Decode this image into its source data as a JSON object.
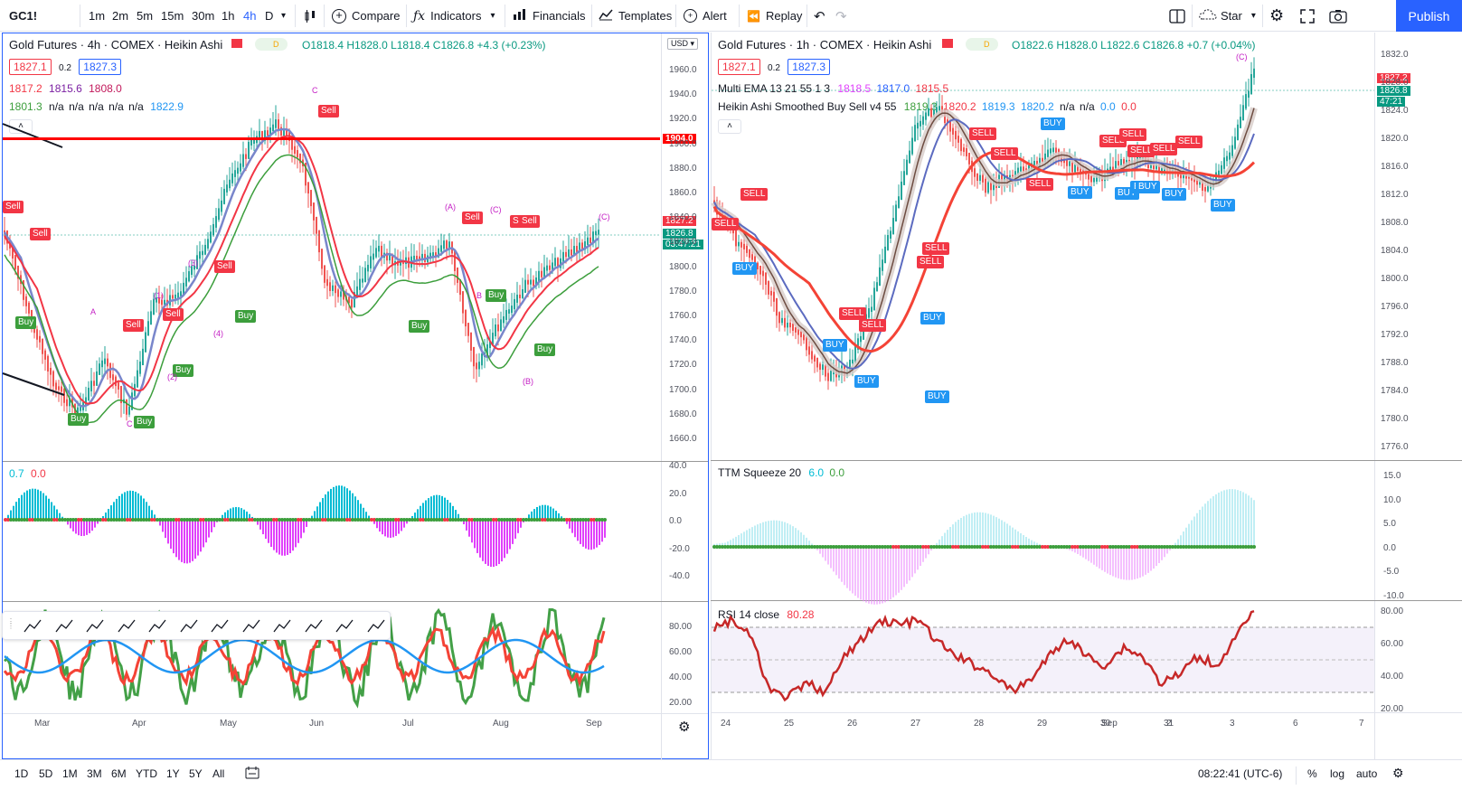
{
  "toolbar": {
    "symbol": "GC1!",
    "intervals": [
      "1m",
      "2m",
      "5m",
      "15m",
      "30m",
      "1h",
      "4h",
      "D"
    ],
    "compare": "Compare",
    "indicators": "Indicators",
    "financials": "Financials",
    "templates": "Templates",
    "alert": "Alert",
    "replay": "Replay",
    "star": "Star",
    "publish": "Publish"
  },
  "left_chart": {
    "title": "Gold Futures · 4h · COMEX · Heikin Ashi",
    "currency": "USD",
    "ohlc": "O1818.4 H1828.0 L1818.4 C1826.8 +4.3 (+0.23%)",
    "bid": "1827.1",
    "spread": "0.2",
    "ask": "1827.3",
    "ind1": [
      "1817.2",
      "1815.6",
      "1808.0"
    ],
    "ind2": [
      "1801.3",
      "n/a",
      "n/a",
      "n/a",
      "n/a",
      "n/a",
      "1822.9"
    ],
    "price_axis": [
      "1960.0",
      "1940.0",
      "1920.0",
      "1900.0",
      "1880.0",
      "1860.0",
      "1840.0",
      "1820.0",
      "1800.0",
      "1780.0",
      "1760.0",
      "1740.0",
      "1720.0",
      "1700.0",
      "1680.0",
      "1660.0"
    ],
    "line_label": "1904.0",
    "price_label": "1827.2",
    "last_label": "1826.8",
    "countdown": "03:47:21",
    "osc_values": [
      "0.7",
      "0.0"
    ],
    "osc_axis": [
      "40.0",
      "20.0",
      "0.0",
      "-20.0",
      "-40.0"
    ],
    "rsi_axis": [
      "80.00",
      "60.00",
      "40.00",
      "20.00"
    ],
    "time_axis": [
      "Mar",
      "Apr",
      "May",
      "Jun",
      "Jul",
      "Aug",
      "Sep"
    ],
    "signals": [
      {
        "t": "Sell",
        "c": "sell"
      },
      {
        "t": "Sell",
        "c": "sell"
      },
      {
        "t": "Buy",
        "c": "buy"
      },
      {
        "t": "Buy",
        "c": "buy"
      },
      {
        "t": "Sell",
        "c": "sell"
      },
      {
        "t": "Buy",
        "c": "buy"
      },
      {
        "t": "Sell",
        "c": "sell"
      },
      {
        "t": "Buy",
        "c": "buy"
      },
      {
        "t": "Sell",
        "c": "sell"
      },
      {
        "t": "Buy",
        "c": "buy"
      },
      {
        "t": "Sell",
        "c": "sell"
      },
      {
        "t": "Buy",
        "c": "buy"
      },
      {
        "t": "Sell",
        "c": "sell"
      },
      {
        "t": "Sell",
        "c": "sell"
      },
      {
        "t": "Buy",
        "c": "buy"
      },
      {
        "t": "Buy",
        "c": "buy"
      },
      {
        "t": "Sell",
        "c": "sell"
      }
    ],
    "waves": [
      "A",
      "C",
      "(1)",
      "(2)",
      "(3)",
      "(4)",
      "C",
      "(A)",
      "(C)",
      "(B)",
      "(C)",
      "B"
    ]
  },
  "right_chart": {
    "title": "Gold Futures · 1h · COMEX · Heikin Ashi",
    "ohlc": "O1822.6 H1828.0 L1822.6 C1826.8 +0.7 (+0.04%)",
    "bid": "1827.1",
    "spread": "0.2",
    "ask": "1827.3",
    "ema_name": "Multi EMA 13 21 55 1 3",
    "ema_vals": [
      "1818.5",
      "1817.0",
      "1815.5"
    ],
    "ha_name": "Heikin Ashi Smoothed Buy Sell v4 55",
    "ha_vals": [
      "1819.3",
      "1820.2",
      "1819.3",
      "1820.2",
      "n/a",
      "n/a",
      "0.0",
      "0.0"
    ],
    "price_axis": [
      "1832.0",
      "1828.0",
      "1824.0",
      "1820.0",
      "1816.0",
      "1812.0",
      "1808.0",
      "1804.0",
      "1800.0",
      "1796.0",
      "1792.0",
      "1788.0",
      "1784.0",
      "1780.0",
      "1776.0"
    ],
    "price_label": "1827.2",
    "last_label": "1826.8",
    "countdown": "47:21",
    "ttm_name": "TTM Squeeze 20",
    "ttm_vals": [
      "6.0",
      "0.0"
    ],
    "ttm_axis": [
      "15.0",
      "10.0",
      "5.0",
      "0.0",
      "-5.0",
      "-10.0"
    ],
    "rsi_name": "RSI 14 close",
    "rsi_val": "80.28",
    "rsi_axis": [
      "80.00",
      "60.00",
      "40.00",
      "20.00"
    ],
    "time_axis": [
      "24",
      "25",
      "26",
      "27",
      "28",
      "29",
      "30",
      "31",
      "Sep",
      "2",
      "3",
      "6",
      "7"
    ],
    "signals": [
      {
        "t": "SELL",
        "c": "sell"
      },
      {
        "t": "SELL",
        "c": "sell"
      },
      {
        "t": "BUY",
        "c": "buy2"
      },
      {
        "t": "SELL",
        "c": "sell"
      },
      {
        "t": "BUY",
        "c": "buy2"
      },
      {
        "t": "SELL",
        "c": "sell"
      },
      {
        "t": "BUY",
        "c": "buy2"
      },
      {
        "t": "SELL",
        "c": "sell"
      },
      {
        "t": "SELL",
        "c": "sell"
      },
      {
        "t": "BUY",
        "c": "buy2"
      },
      {
        "t": "BUY",
        "c": "buy2"
      },
      {
        "t": "SELL",
        "c": "sell"
      },
      {
        "t": "SELL",
        "c": "sell"
      },
      {
        "t": "BUY",
        "c": "buy2"
      },
      {
        "t": "SELL",
        "c": "sell"
      },
      {
        "t": "BUY",
        "c": "buy2"
      },
      {
        "t": "SELL",
        "c": "sell"
      },
      {
        "t": "BUY",
        "c": "buy2"
      },
      {
        "t": "SELL",
        "c": "sell"
      },
      {
        "t": "SELL",
        "c": "sell"
      },
      {
        "t": "BUY",
        "c": "buy2"
      },
      {
        "t": "SELL",
        "c": "sell"
      },
      {
        "t": "BUY",
        "c": "buy2"
      },
      {
        "t": "SELL",
        "c": "sell"
      },
      {
        "t": "BUY",
        "c": "buy2"
      },
      {
        "t": "BUY",
        "c": "buy2"
      },
      {
        "t": "BUY",
        "c": "buy2"
      }
    ],
    "wave": "(C)"
  },
  "bottom": {
    "ranges": [
      "1D",
      "5D",
      "1M",
      "3M",
      "6M",
      "YTD",
      "1Y",
      "5Y",
      "All"
    ],
    "clock": "08:22:41 (UTC-6)",
    "pct": "%",
    "log": "log",
    "auto": "auto"
  },
  "colors": {
    "accent": "#2962ff",
    "sell": "#f23645",
    "buy": "#3c9e3c",
    "buy_blue": "#2196f3",
    "level": "#f00"
  },
  "icons": [
    "candle-type-icon",
    "compare-plus-icon",
    "fx-icon",
    "financials-icon",
    "templates-icon",
    "alert-clock-icon",
    "replay-icon",
    "undo-icon",
    "redo-icon",
    "layout-icon",
    "cloud-icon",
    "settings-icon",
    "fullscreen-icon",
    "camera-icon"
  ]
}
